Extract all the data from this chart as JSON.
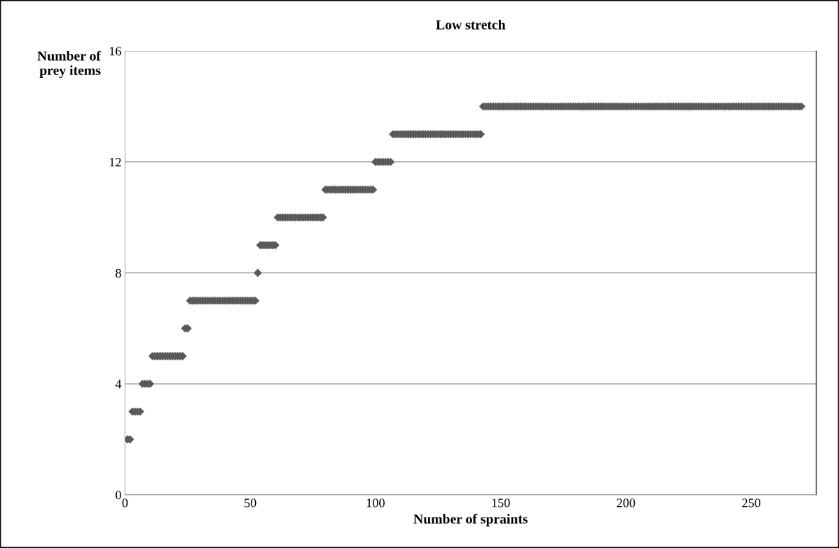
{
  "chart_data": {
    "type": "scatter",
    "title": "Low stretch",
    "xlabel": "Number of spraints",
    "ylabel": "Number of\nprey items",
    "xlim": [
      0,
      276
    ],
    "xticks": [
      0,
      50,
      100,
      150,
      200,
      250
    ],
    "ylim": [
      0,
      16
    ],
    "yticks": [
      0,
      4,
      8,
      12,
      16
    ],
    "grid": "y",
    "legend": false,
    "marker": "diamond",
    "series": [
      {
        "color": "#5a5a5a",
        "x": [
          1,
          2,
          3,
          4,
          5,
          6,
          7,
          8,
          9,
          10,
          11,
          12,
          13,
          14,
          15,
          16,
          17,
          18,
          19,
          20,
          21,
          22,
          23,
          24,
          25,
          26,
          27,
          28,
          29,
          30,
          31,
          32,
          33,
          34,
          35,
          36,
          37,
          38,
          39,
          40,
          41,
          42,
          43,
          44,
          45,
          46,
          47,
          48,
          49,
          50,
          51,
          52,
          53,
          54,
          55,
          56,
          57,
          58,
          59,
          60,
          61,
          62,
          63,
          64,
          65,
          66,
          67,
          68,
          69,
          70,
          71,
          72,
          73,
          74,
          75,
          76,
          77,
          78,
          79,
          80,
          81,
          82,
          83,
          84,
          85,
          86,
          87,
          88,
          89,
          90,
          91,
          92,
          93,
          94,
          95,
          96,
          97,
          98,
          99,
          100,
          101,
          102,
          103,
          104,
          105,
          106,
          107,
          108,
          109,
          110,
          111,
          112,
          113,
          114,
          115,
          116,
          117,
          118,
          119,
          120,
          121,
          122,
          123,
          124,
          125,
          126,
          127,
          128,
          129,
          130,
          131,
          132,
          133,
          134,
          135,
          136,
          137,
          138,
          139,
          140,
          141,
          142,
          143,
          144,
          145,
          146,
          147,
          148,
          149,
          150,
          151,
          152,
          153,
          154,
          155,
          156,
          157,
          158,
          159,
          160,
          161,
          162,
          163,
          164,
          165,
          166,
          167,
          168,
          169,
          170,
          171,
          172,
          173,
          174,
          175,
          176,
          177,
          178,
          179,
          180,
          181,
          182,
          183,
          184,
          185,
          186,
          187,
          188,
          189,
          190,
          191,
          192,
          193,
          194,
          195,
          196,
          197,
          198,
          199,
          200,
          201,
          202,
          203,
          204,
          205,
          206,
          207,
          208,
          209,
          210,
          211,
          212,
          213,
          214,
          215,
          216,
          217,
          218,
          219,
          220,
          221,
          222,
          223,
          224,
          225,
          226,
          227,
          228,
          229,
          230,
          231,
          232,
          233,
          234,
          235,
          236,
          237,
          238,
          239,
          240,
          241,
          242,
          243,
          244,
          245,
          246,
          247,
          248,
          249,
          250,
          251,
          252,
          253,
          254,
          255,
          256,
          257,
          258,
          259,
          260,
          261,
          262,
          263,
          264,
          265,
          266,
          267,
          268,
          269,
          270
        ],
        "values": [
          2,
          2,
          3,
          3,
          3,
          3,
          4,
          4,
          4,
          4,
          5,
          5,
          5,
          5,
          5,
          5,
          5,
          5,
          5,
          5,
          5,
          5,
          5,
          6,
          6,
          7,
          7,
          7,
          7,
          7,
          7,
          7,
          7,
          7,
          7,
          7,
          7,
          7,
          7,
          7,
          7,
          7,
          7,
          7,
          7,
          7,
          7,
          7,
          7,
          7,
          7,
          7,
          8,
          9,
          9,
          9,
          9,
          9,
          9,
          9,
          10,
          10,
          10,
          10,
          10,
          10,
          10,
          10,
          10,
          10,
          10,
          10,
          10,
          10,
          10,
          10,
          10,
          10,
          10,
          11,
          11,
          11,
          11,
          11,
          11,
          11,
          11,
          11,
          11,
          11,
          11,
          11,
          11,
          11,
          11,
          11,
          11,
          11,
          11,
          12,
          12,
          12,
          12,
          12,
          12,
          12,
          13,
          13,
          13,
          13,
          13,
          13,
          13,
          13,
          13,
          13,
          13,
          13,
          13,
          13,
          13,
          13,
          13,
          13,
          13,
          13,
          13,
          13,
          13,
          13,
          13,
          13,
          13,
          13,
          13,
          13,
          13,
          13,
          13,
          13,
          13,
          13,
          14,
          14,
          14,
          14,
          14,
          14,
          14,
          14,
          14,
          14,
          14,
          14,
          14,
          14,
          14,
          14,
          14,
          14,
          14,
          14,
          14,
          14,
          14,
          14,
          14,
          14,
          14,
          14,
          14,
          14,
          14,
          14,
          14,
          14,
          14,
          14,
          14,
          14,
          14,
          14,
          14,
          14,
          14,
          14,
          14,
          14,
          14,
          14,
          14,
          14,
          14,
          14,
          14,
          14,
          14,
          14,
          14,
          14,
          14,
          14,
          14,
          14,
          14,
          14,
          14,
          14,
          14,
          14,
          14,
          14,
          14,
          14,
          14,
          14,
          14,
          14,
          14,
          14,
          14,
          14,
          14,
          14,
          14,
          14,
          14,
          14,
          14,
          14,
          14,
          14,
          14,
          14,
          14,
          14,
          14,
          14,
          14,
          14,
          14,
          14,
          14,
          14,
          14,
          14,
          14,
          14,
          14,
          14,
          14,
          14,
          14,
          14,
          14,
          14,
          14,
          14,
          14,
          14,
          14,
          14,
          14,
          14,
          14,
          14,
          14,
          14,
          14,
          14
        ]
      }
    ]
  }
}
